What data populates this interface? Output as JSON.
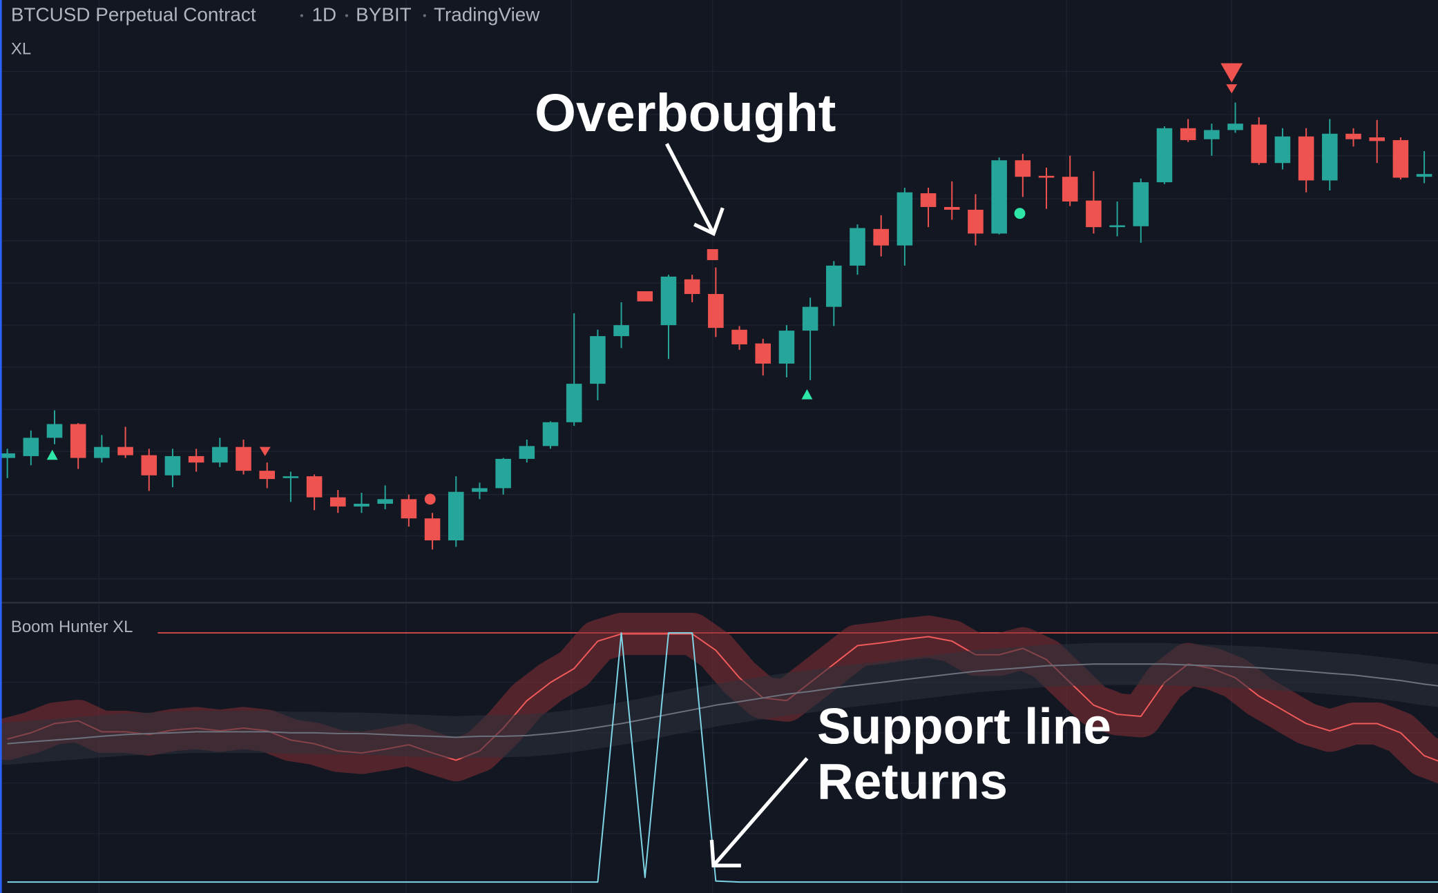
{
  "header": {
    "symbol": "BTCUSD Perpetual Contract",
    "interval": "1D",
    "exchange": "BYBIT",
    "source": "TradingView",
    "overlay": "XL"
  },
  "annotations": {
    "overbought": "Overbought",
    "support_line": "Support line",
    "returns": "Returns"
  },
  "chart_data": [
    {
      "type": "candlestick",
      "up_color": "#26a69a",
      "down_color": "#ef5350",
      "ylim": [
        0,
        600
      ],
      "open": [
        160,
        162,
        182,
        197,
        160,
        172,
        163,
        141,
        162,
        155,
        172,
        146,
        138,
        140,
        117,
        107,
        110,
        115,
        94,
        70,
        123,
        127,
        159,
        173,
        199,
        241,
        293,
        342,
        305,
        355,
        339,
        300,
        285,
        263,
        299,
        325,
        370,
        410,
        392,
        449,
        434,
        431,
        405,
        485,
        468,
        467,
        441,
        412,
        413,
        461,
        520,
        508,
        518,
        524,
        482,
        511,
        463,
        514,
        510,
        507,
        467,
        465
      ],
      "high": [
        170,
        190,
        212,
        198,
        185,
        194,
        170,
        170,
        170,
        182,
        180,
        155,
        145,
        142,
        125,
        122,
        130,
        120,
        100,
        140,
        133,
        160,
        180,
        200,
        318,
        300,
        330,
        342,
        360,
        360,
        368,
        304,
        290,
        305,
        335,
        375,
        415,
        425,
        455,
        455,
        462,
        448,
        488,
        492,
        477,
        490,
        473,
        440,
        465,
        522,
        530,
        525,
        548,
        532,
        520,
        520,
        530,
        520,
        529,
        510,
        495,
        510
      ],
      "low": [
        138,
        152,
        175,
        148,
        155,
        160,
        124,
        128,
        145,
        150,
        142,
        127,
        112,
        103,
        100,
        100,
        104,
        85,
        60,
        63,
        115,
        120,
        155,
        170,
        195,
        223,
        280,
        331,
        268,
        330,
        292,
        278,
        250,
        248,
        245,
        304,
        360,
        380,
        370,
        412,
        420,
        392,
        404,
        445,
        432,
        435,
        405,
        402,
        395,
        459,
        505,
        490,
        515,
        480,
        475,
        450,
        452,
        500,
        482,
        464,
        460,
        460
      ],
      "close": [
        165,
        182,
        197,
        160,
        172,
        163,
        141,
        162,
        155,
        172,
        146,
        137,
        140,
        117,
        107,
        110,
        115,
        94,
        70,
        123,
        127,
        159,
        173,
        199,
        241,
        293,
        305,
        331,
        358,
        339,
        302,
        284,
        263,
        299,
        325,
        370,
        411,
        392,
        450,
        434,
        431,
        405,
        485,
        467,
        466,
        440,
        412,
        414,
        461,
        520,
        507,
        518,
        525,
        482,
        511,
        463,
        514,
        508,
        506,
        466,
        470,
        508
      ]
    },
    {
      "type": "line",
      "title": "Boom Hunter XL",
      "ylim": [
        0,
        100
      ],
      "reference_line": 100,
      "reference_color": "#ef5350",
      "series": [
        {
          "color": "#f05a5a",
          "band_color": "#8a2f35",
          "values": [
            57.4,
            59.9,
            63.6,
            64.7,
            60.3,
            60.3,
            59.2,
            61.0,
            61.8,
            60.7,
            61.8,
            60.7,
            57.0,
            55.5,
            52.6,
            51.8,
            53.3,
            55.1,
            51.8,
            48.9,
            52.6,
            61.8,
            72.8,
            80.1,
            85.7,
            96.7,
            99.6,
            99.6,
            99.6,
            99.6,
            93.0,
            82.0,
            73.9,
            72.8,
            80.1,
            87.5,
            94.9,
            96.0,
            97.4,
            98.5,
            96.7,
            91.2,
            91.2,
            93.8,
            89.3,
            80.1,
            71.0,
            67.3,
            66.5,
            80.1,
            87.5,
            85.7,
            82.0,
            74.6,
            69.1,
            63.6,
            60.7,
            63.6,
            63.6,
            59.9,
            50.7,
            47.1
          ]
        },
        {
          "color": "#6d717c",
          "band_color": "#2e313c",
          "values": [
            55.5,
            56.3,
            57.0,
            57.7,
            58.5,
            59.2,
            59.6,
            59.9,
            60.3,
            60.3,
            60.3,
            60.3,
            59.9,
            59.9,
            59.6,
            59.6,
            59.2,
            58.8,
            58.5,
            58.1,
            58.5,
            58.5,
            58.8,
            59.6,
            60.7,
            62.1,
            63.6,
            65.4,
            67.3,
            69.1,
            71.0,
            72.4,
            73.9,
            75.4,
            76.5,
            77.9,
            79.0,
            80.1,
            81.3,
            82.4,
            83.5,
            84.6,
            85.3,
            86.0,
            86.8,
            87.1,
            87.5,
            87.5,
            87.5,
            87.5,
            87.1,
            86.8,
            86.4,
            86.0,
            85.3,
            84.6,
            83.8,
            83.1,
            82.0,
            80.9,
            79.4,
            78.3
          ]
        },
        {
          "color": "#7fd4e6",
          "values": [
            0,
            0,
            0,
            0,
            0,
            0,
            0,
            0,
            0,
            0,
            0,
            0,
            0,
            0,
            0,
            0,
            0,
            0,
            0,
            0,
            0,
            0,
            0,
            0,
            0,
            0,
            100,
            1.8,
            100,
            100,
            0.4,
            0,
            0,
            0,
            0,
            0,
            0,
            0,
            0,
            0,
            0,
            0,
            0,
            0,
            0,
            0,
            0,
            0,
            0,
            0,
            0,
            0,
            0,
            0,
            0,
            0,
            0,
            0,
            0,
            0,
            0,
            0
          ]
        }
      ]
    }
  ]
}
